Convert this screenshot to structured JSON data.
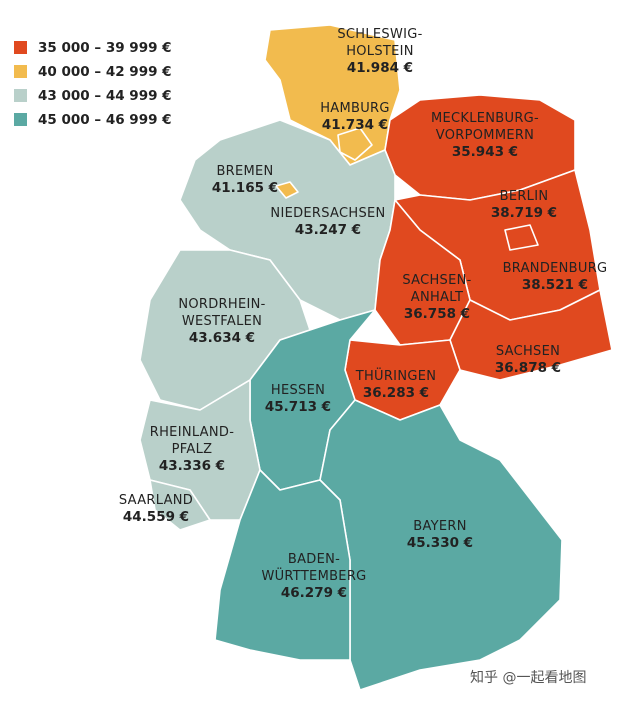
{
  "legend": [
    {
      "label": "35 000 – 39 999 €",
      "color": "#e0491f"
    },
    {
      "label": "40 000 – 42 999 €",
      "color": "#f2bb4e"
    },
    {
      "label": "43 000 – 44 999 €",
      "color": "#b9d0ca"
    },
    {
      "label": "45 000 – 46 999 €",
      "color": "#5ba9a3"
    }
  ],
  "states": [
    {
      "name": [
        "SCHLESWIG-",
        "HOLSTEIN"
      ],
      "value": "41.984 €",
      "color": "#f2bb4e"
    },
    {
      "name": [
        "HAMBURG"
      ],
      "value": "41.734 €",
      "color": "#f2bb4e"
    },
    {
      "name": [
        "MECKLENBURG-",
        "VORPOMMERN"
      ],
      "value": "35.943 €",
      "color": "#e0491f"
    },
    {
      "name": [
        "BREMEN"
      ],
      "value": "41.165 €",
      "color": "#f2bb4e"
    },
    {
      "name": [
        "NIEDERSACHSEN"
      ],
      "value": "43.247 €",
      "color": "#b9d0ca"
    },
    {
      "name": [
        "BERLIN"
      ],
      "value": "38.719 €",
      "color": "#e0491f"
    },
    {
      "name": [
        "BRANDENBURG"
      ],
      "value": "38.521 €",
      "color": "#e0491f"
    },
    {
      "name": [
        "SACHSEN-",
        "ANHALT"
      ],
      "value": "36.758 €",
      "color": "#e0491f"
    },
    {
      "name": [
        "NORDRHEIN-",
        "WESTFALEN"
      ],
      "value": "43.634 €",
      "color": "#b9d0ca"
    },
    {
      "name": [
        "SACHSEN"
      ],
      "value": "36.878 €",
      "color": "#e0491f"
    },
    {
      "name": [
        "THÜRINGEN"
      ],
      "value": "36.283 €",
      "color": "#e0491f"
    },
    {
      "name": [
        "HESSEN"
      ],
      "value": "45.713 €",
      "color": "#5ba9a3"
    },
    {
      "name": [
        "RHEINLAND-",
        "PFALZ"
      ],
      "value": "43.336 €",
      "color": "#b9d0ca"
    },
    {
      "name": [
        "SAARLAND"
      ],
      "value": "44.559 €",
      "color": "#b9d0ca"
    },
    {
      "name": [
        "BAYERN"
      ],
      "value": "45.330 €",
      "color": "#5ba9a3"
    },
    {
      "name": [
        "BADEN-",
        "WÜRTTEMBERG"
      ],
      "value": "46.279 €",
      "color": "#5ba9a3"
    }
  ],
  "watermark": "知乎 @一起看地图"
}
